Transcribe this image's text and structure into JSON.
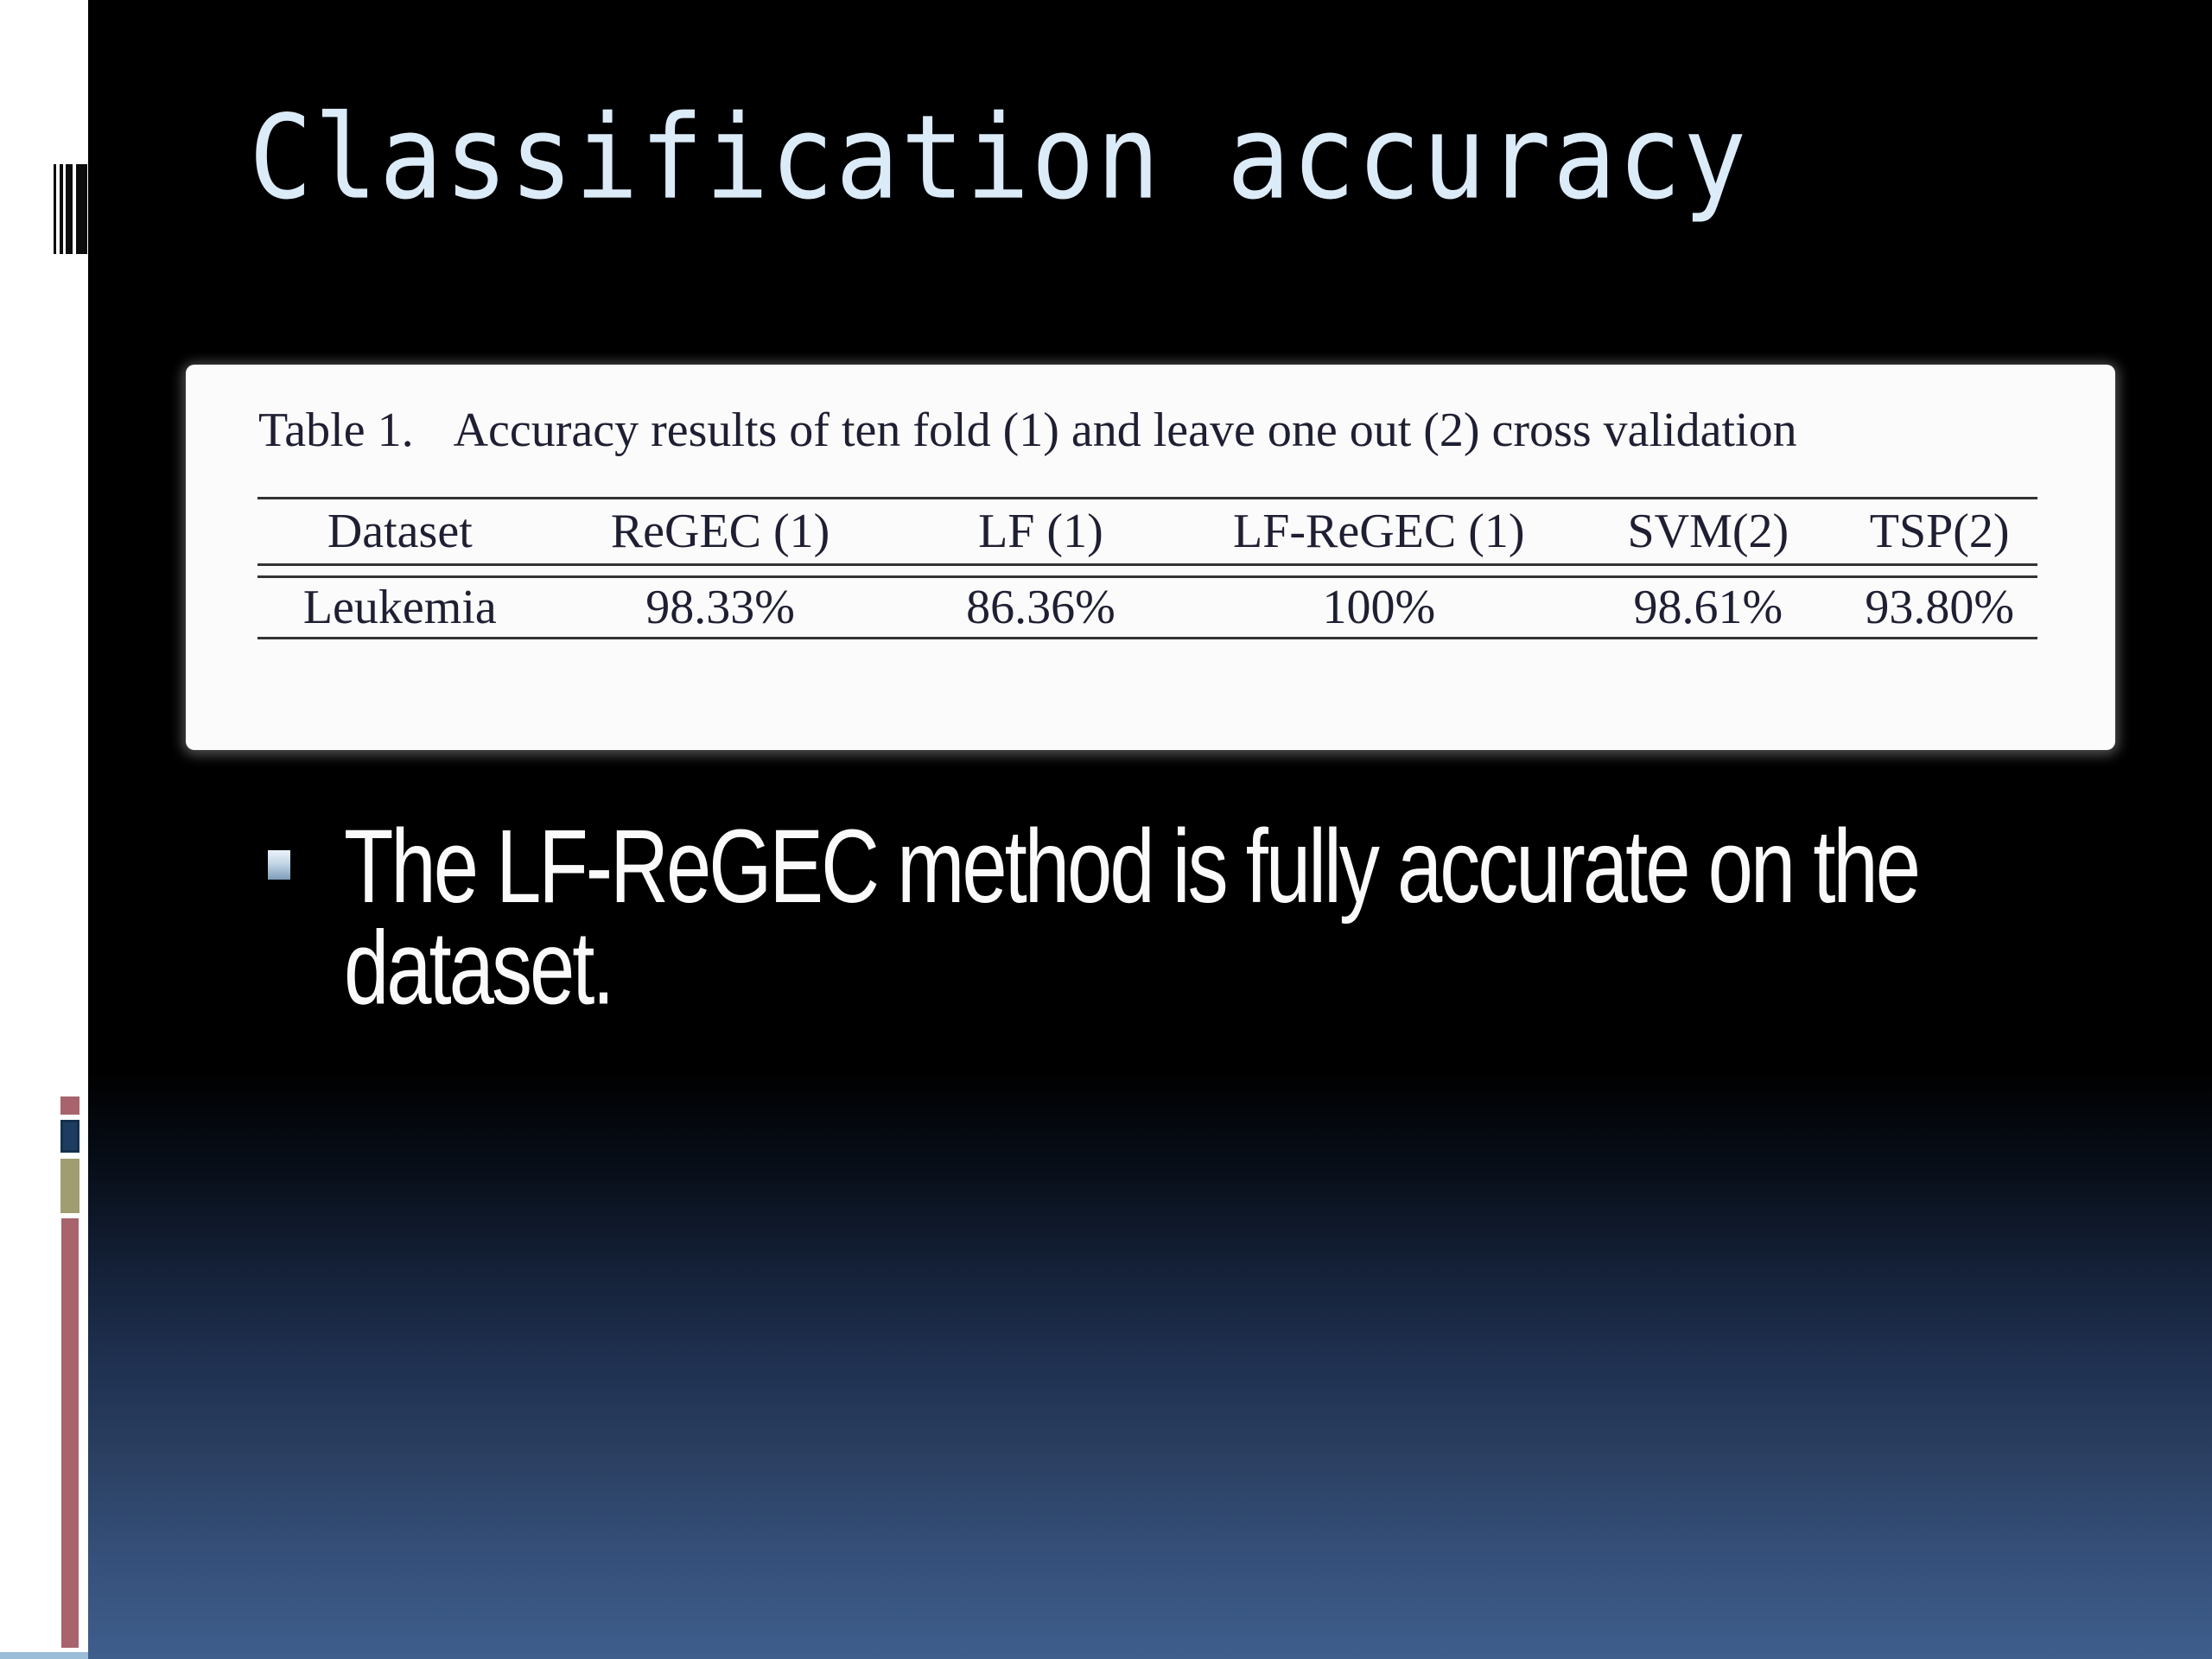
{
  "slide": {
    "title": "Classification accuracy",
    "bullet": {
      "line1": "The LF-ReGEC method is fully accurate on the",
      "line2": "dataset."
    }
  },
  "table": {
    "caption_label": "Table 1.",
    "caption_text": "Accuracy results of ten fold (1) and leave one out (2) cross validation",
    "columns": [
      "Dataset",
      "ReGEC (1)",
      "LF (1)",
      "LF-ReGEC (1)",
      "SVM(2)",
      "TSP(2)"
    ],
    "rows": [
      {
        "cells": [
          "Leukemia",
          "98.33%",
          "86.36%",
          "100%",
          "98.61%",
          "93.80%"
        ]
      }
    ]
  },
  "chart_data": {
    "type": "table",
    "title": "Table 1. Accuracy results of ten fold (1) and leave one out (2) cross validation",
    "categories": [
      "ReGEC (1)",
      "LF (1)",
      "LF-ReGEC (1)",
      "SVM(2)",
      "TSP(2)"
    ],
    "series": [
      {
        "name": "Leukemia",
        "values": [
          98.33,
          86.36,
          100,
          98.61,
          93.8
        ]
      }
    ],
    "unit": "%"
  },
  "icons": {
    "barcode_icon": "vertical-bars-barcode",
    "bullet_marker": "square-bullet"
  },
  "colors": {
    "title_text": "#dcebf8",
    "background_top": "#000000",
    "background_bottom": "#3f5e8c",
    "sidebar": "#ffffff",
    "sidebar_bottom_strip": "#9cbdd8",
    "accent_rose": "#a8636c",
    "accent_navy": "#1e3c60",
    "accent_olive": "#a09d70",
    "panel_background": "#fbfbfb",
    "table_rule": "#333333",
    "table_text": "#1f1f33",
    "bullet_text": "#fafafa"
  }
}
